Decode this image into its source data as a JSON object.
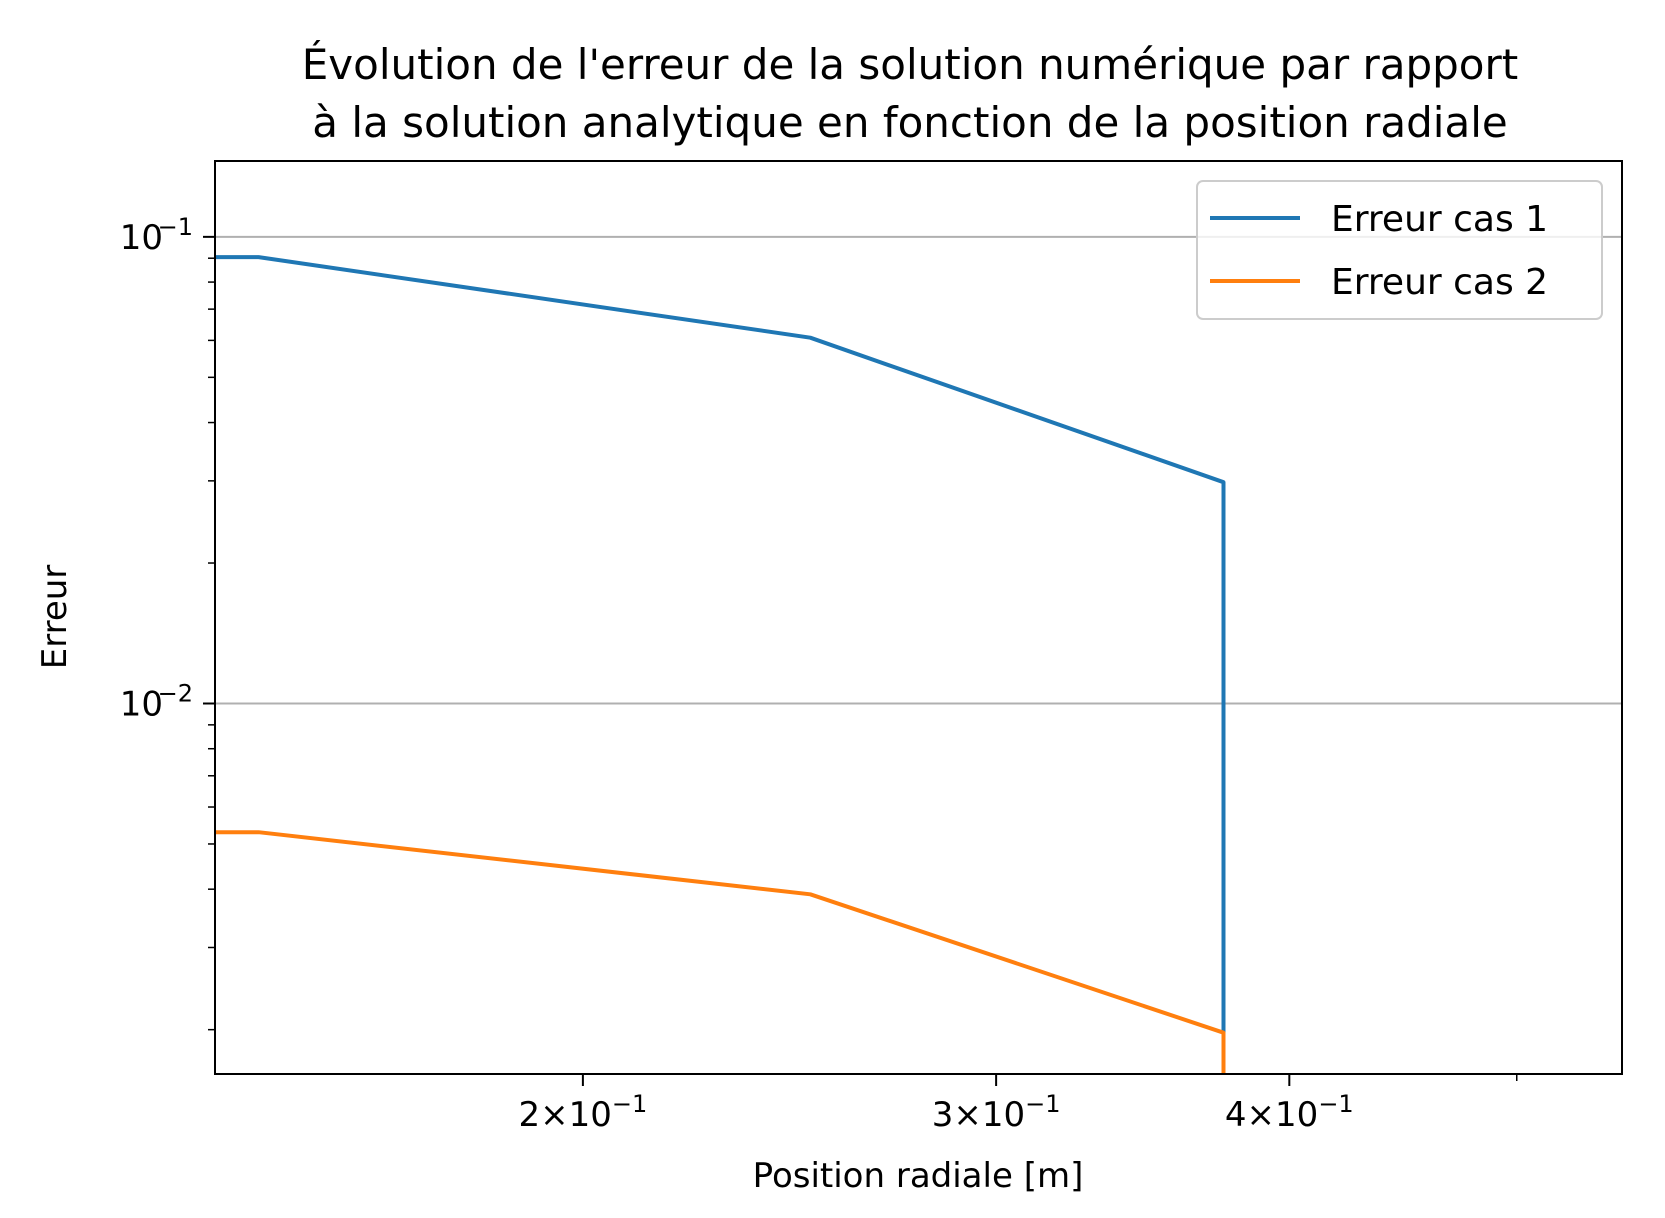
{
  "chart_data": {
    "type": "line",
    "title_lines": [
      "Évolution de l'erreur de la solution numérique par rapport",
      "à la solution analytique en fonction de la position radiale"
    ],
    "xlabel": "Position radiale [m]",
    "ylabel": "Erreur",
    "xscale": "log",
    "yscale": "log",
    "xlim": [
      0.1394,
      0.5544
    ],
    "ylim": [
      0.001607,
      0.1454
    ],
    "grid": "y-major",
    "legend_position": "top-right",
    "x_major_ticks": [
      {
        "value": 0.2,
        "mantissa": "2",
        "exponent": "−1"
      },
      {
        "value": 0.3,
        "mantissa": "3",
        "exponent": "−1"
      },
      {
        "value": 0.4,
        "mantissa": "4",
        "exponent": "−1"
      }
    ],
    "x_minor_ticks": [
      0.5
    ],
    "y_major_ticks": [
      {
        "value": 0.1,
        "base": "10",
        "exponent": "−1"
      },
      {
        "value": 0.01,
        "base": "10",
        "exponent": "−2"
      }
    ],
    "y_minor_ticks": [
      0.002,
      0.003,
      0.004,
      0.005,
      0.006,
      0.007,
      0.008,
      0.009,
      0.02,
      0.03,
      0.04,
      0.05,
      0.06,
      0.07,
      0.08,
      0.09
    ],
    "series": [
      {
        "name": "Erreur cas 1",
        "color": "#1f77b4",
        "x": [
          0.1394,
          0.1455,
          0.25,
          0.375,
          0.375
        ],
        "y": [
          0.0905,
          0.0905,
          0.0608,
          0.0298,
          0.001607
        ]
      },
      {
        "name": "Erreur cas 2",
        "color": "#ff7f0e",
        "x": [
          0.1394,
          0.1455,
          0.25,
          0.375,
          0.375
        ],
        "y": [
          0.0053,
          0.0053,
          0.0039,
          0.00197,
          0.001607
        ]
      }
    ]
  }
}
